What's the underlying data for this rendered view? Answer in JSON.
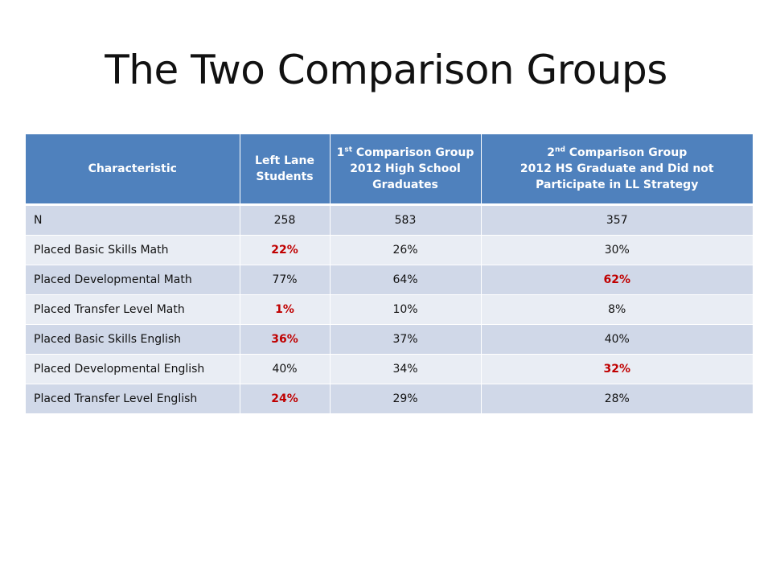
{
  "title": "The Two Comparison Groups",
  "table": {
    "headers": {
      "characteristic": "Characteristic",
      "left_lane": "Left Lane Students",
      "group1": {
        "num": "1",
        "sup": "st",
        "line1": " Comparison Group",
        "line2": "2012 High School Graduates"
      },
      "group2": {
        "num": "2",
        "sup": "nd",
        "line1": " Comparison Group",
        "line2": "2012 HS Graduate and Did not Participate in LL Strategy"
      }
    },
    "rows": [
      {
        "label": "N",
        "left_lane": "258",
        "group1": "583",
        "group2": "357"
      },
      {
        "label": "Placed Basic Skills Math",
        "left_lane": "22%",
        "group1": "26%",
        "group2": "30%"
      },
      {
        "label": "Placed Developmental Math",
        "left_lane": "77%",
        "group1": "64%",
        "group2": "62%"
      },
      {
        "label": "Placed Transfer Level Math",
        "left_lane": "1%",
        "group1": "10%",
        "group2": "8%"
      },
      {
        "label": "Placed Basic Skills English",
        "left_lane": "36%",
        "group1": "37%",
        "group2": "40%"
      },
      {
        "label": "Placed Developmental English",
        "left_lane": "40%",
        "group1": "34%",
        "group2": "32%"
      },
      {
        "label": "Placed Transfer Level English",
        "left_lane": "24%",
        "group1": "29%",
        "group2": "28%"
      }
    ],
    "colors": {
      "header_bg": "#4f81bd",
      "row_band_dark": "#d0d8e8",
      "row_band_light": "#e9edf4",
      "highlight_text": "#c00000"
    }
  }
}
